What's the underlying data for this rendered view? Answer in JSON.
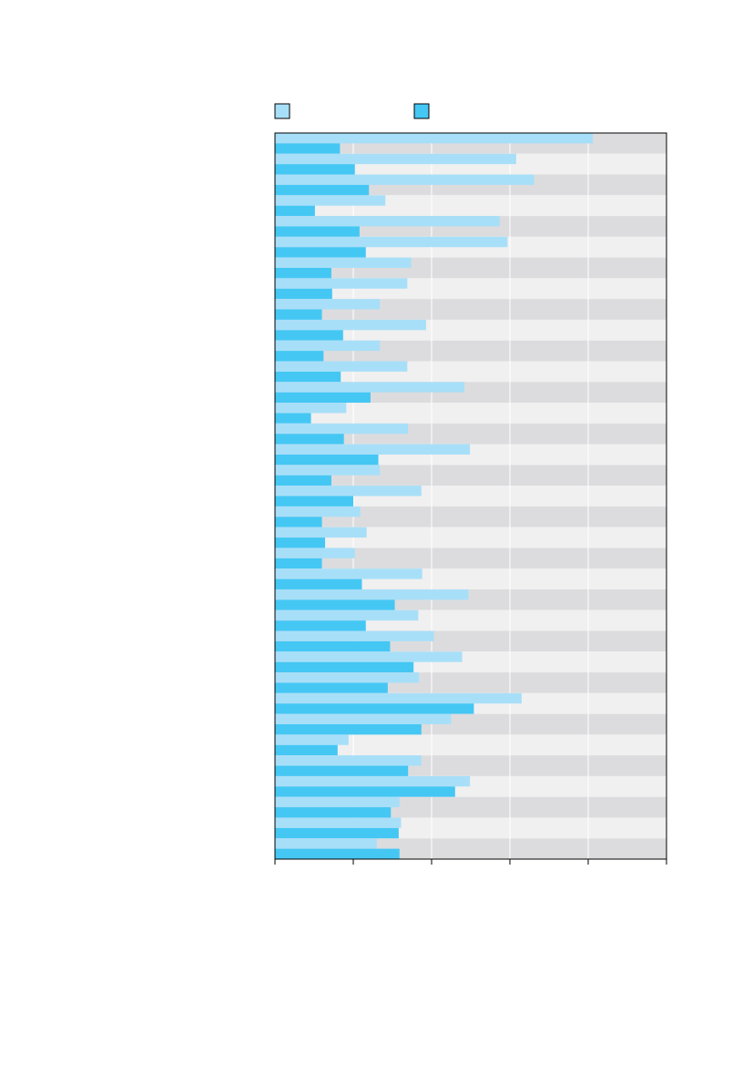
{
  "chart_data": {
    "type": "bar",
    "orientation": "horizontal",
    "title": "",
    "xlabel": "",
    "ylabel": "",
    "xlim": [
      0,
      5
    ],
    "x_ticks": [
      0,
      1,
      2,
      3,
      4,
      5
    ],
    "grid": true,
    "legend_placement": "top",
    "legend": [
      {
        "name": "",
        "color": "#a8dff8"
      },
      {
        "name": "",
        "color": "#45c7f4"
      }
    ],
    "colors": {
      "series_light": "#a8dff8",
      "series_dark": "#45c7f4",
      "band_dark": "#dcdcde",
      "band_light": "#f0f0f0",
      "gridline": "#ffffff",
      "axis": "#000000"
    },
    "categories": [
      "",
      "",
      "",
      "",
      "",
      "",
      "",
      "",
      "",
      "",
      "",
      "",
      "",
      "",
      "",
      "",
      "",
      "",
      "",
      "",
      "",
      "",
      "",
      "",
      "",
      "",
      "",
      "",
      "",
      "",
      "",
      "",
      "",
      "",
      ""
    ],
    "series": [
      {
        "values": [
          4.06,
          3.08,
          3.31,
          1.41,
          2.87,
          2.97,
          1.74,
          1.69,
          1.34,
          1.93,
          1.34,
          1.69,
          2.42,
          0.91,
          1.7,
          2.49,
          1.34,
          1.87,
          1.09,
          1.17,
          1.02,
          1.88,
          2.47,
          1.83,
          2.03,
          2.39,
          1.84,
          3.15,
          2.25,
          0.94,
          1.87,
          2.49,
          1.59,
          1.61,
          1.3
        ]
      },
      {
        "values": [
          0.83,
          1.02,
          1.2,
          0.51,
          1.08,
          1.16,
          0.72,
          0.73,
          0.6,
          0.87,
          0.62,
          0.84,
          1.22,
          0.46,
          0.88,
          1.32,
          0.72,
          1.0,
          0.6,
          0.64,
          0.6,
          1.11,
          1.53,
          1.16,
          1.47,
          1.77,
          1.44,
          2.54,
          1.87,
          0.8,
          1.7,
          2.3,
          1.48,
          1.58,
          1.59
        ]
      }
    ]
  }
}
